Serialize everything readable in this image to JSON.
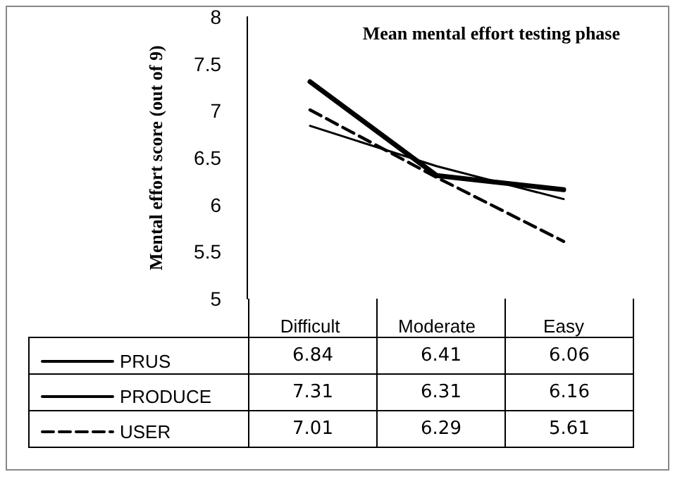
{
  "chart_data": {
    "type": "line",
    "title": "Mean mental effort testing phase",
    "ylabel": "Mental effort score (out of 9)",
    "categories": [
      "Difficult",
      "Moderate",
      "Easy"
    ],
    "series": [
      {
        "name": "PRUS",
        "color": "#000000",
        "line_style": "solid",
        "values": [
          6.84,
          6.41,
          6.06
        ]
      },
      {
        "name": "PRODUCE",
        "color": "#000000",
        "line_style": "solid",
        "values": [
          7.31,
          6.31,
          6.16
        ]
      },
      {
        "name": "USER",
        "color": "#000000",
        "line_style": "dashed",
        "values": [
          7.01,
          6.29,
          5.61
        ]
      }
    ],
    "ylim": [
      5,
      8
    ],
    "yticks": [
      5,
      5.5,
      6,
      6.5,
      7,
      7.5,
      8
    ],
    "grid": false,
    "legend": "bottom left",
    "marker": "none",
    "data_labels": true
  }
}
